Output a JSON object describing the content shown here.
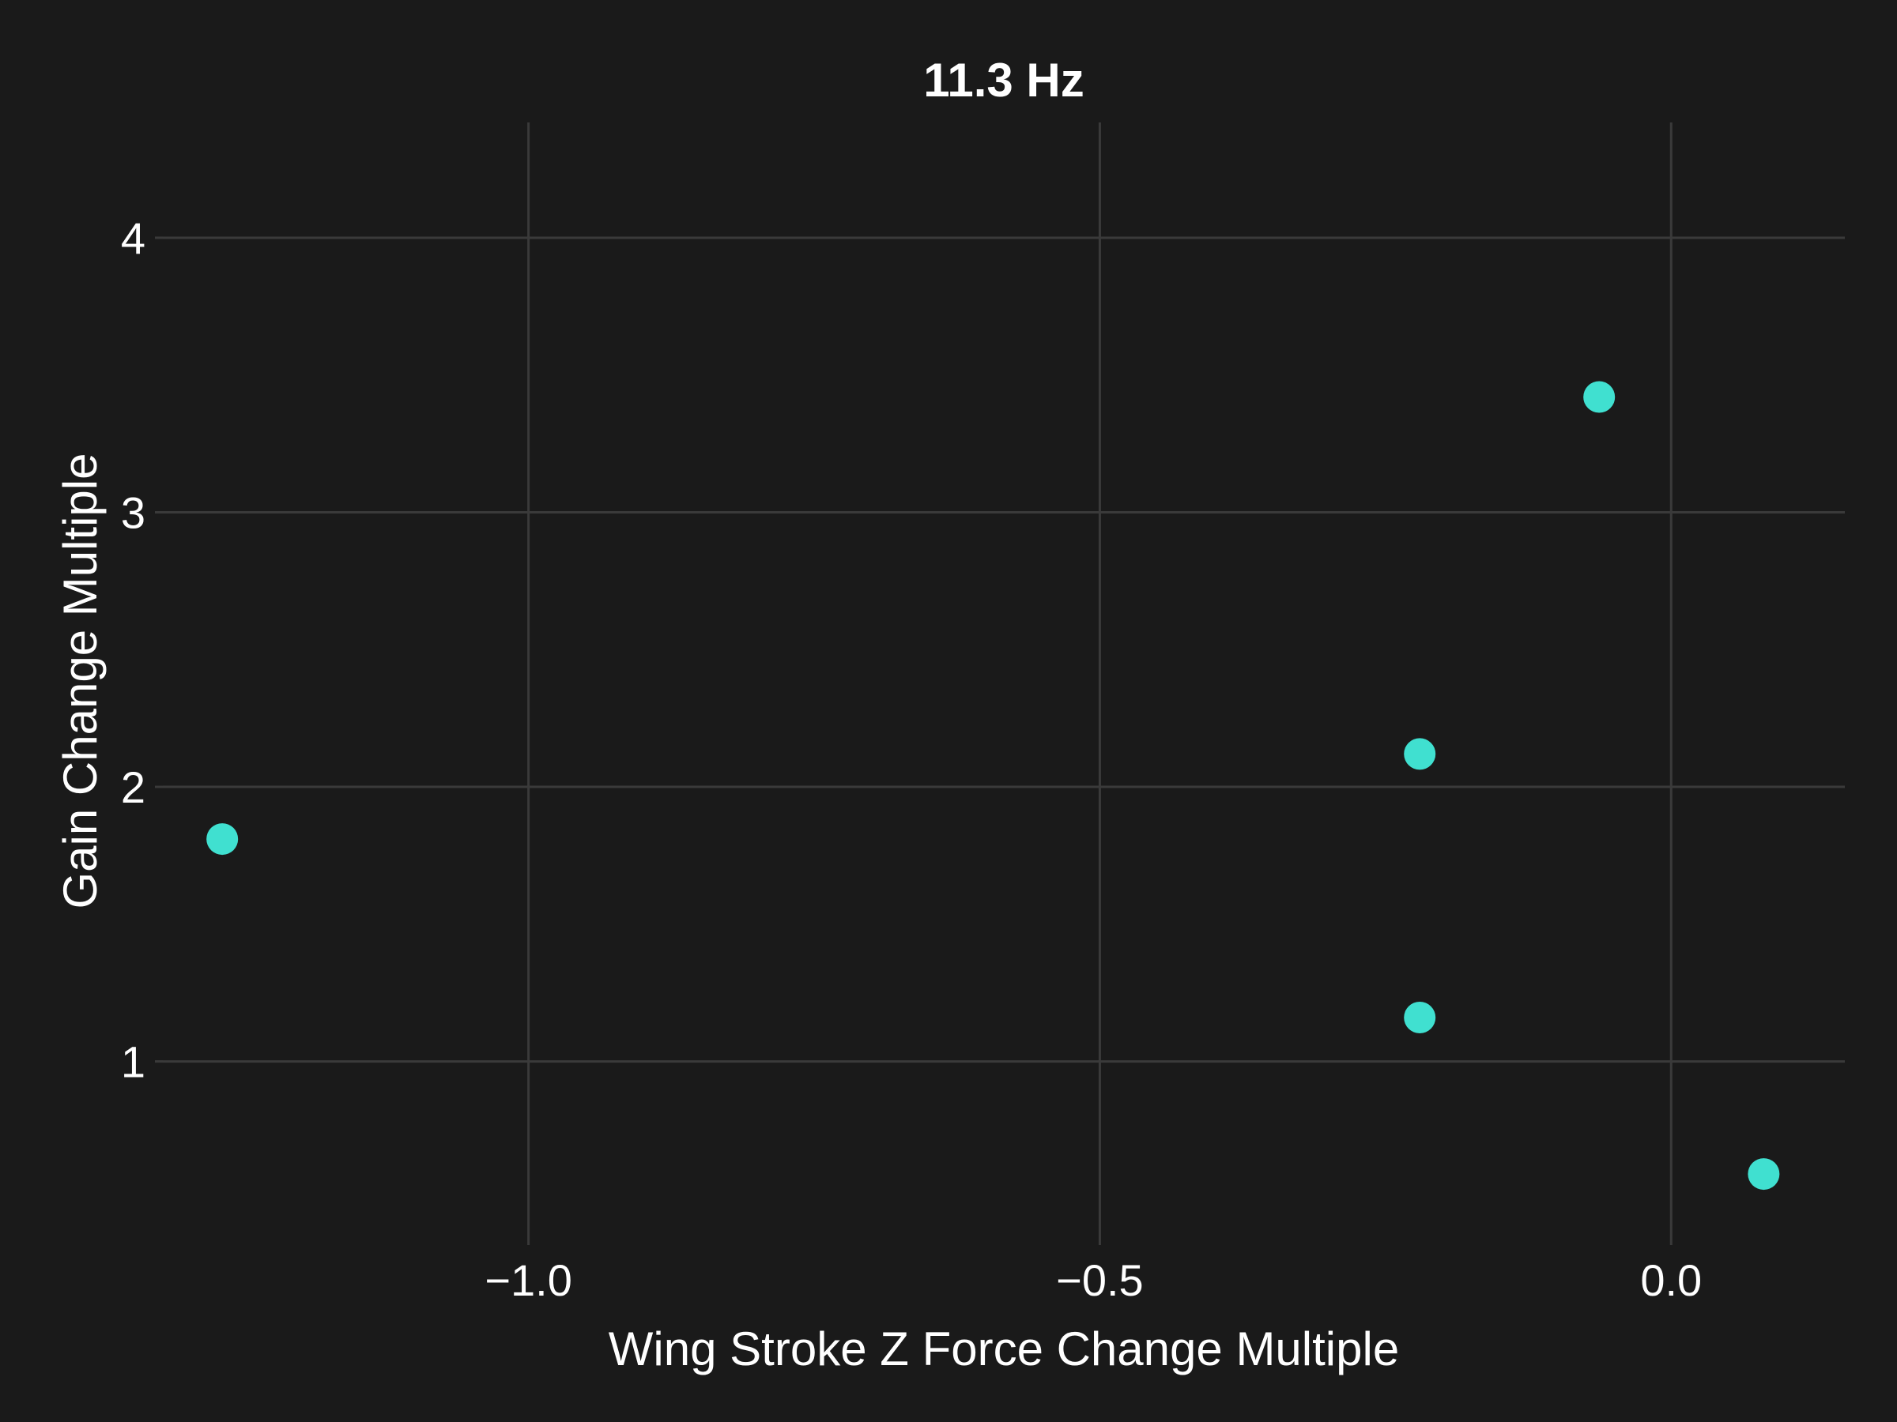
{
  "chart_data": {
    "type": "scatter",
    "title": "11.3 Hz",
    "xlabel": "Wing Stroke Z Force Change Multiple",
    "ylabel": "Gain Change Multiple",
    "xlim": [
      -1.32,
      0.152
    ],
    "ylim": [
      0.36,
      4.42
    ],
    "xticks": [
      {
        "value": -1.0,
        "label": "−1.0"
      },
      {
        "value": -0.5,
        "label": "−0.5"
      },
      {
        "value": 0.0,
        "label": "0.0"
      }
    ],
    "yticks": [
      {
        "value": 1,
        "label": "1"
      },
      {
        "value": 2,
        "label": "2"
      },
      {
        "value": 3,
        "label": "3"
      },
      {
        "value": 4,
        "label": "4"
      }
    ],
    "grid": true,
    "legend": "none",
    "series": [
      {
        "color": "#40e0d0",
        "points": [
          {
            "x": -1.268,
            "y": 1.81
          },
          {
            "x": -0.22,
            "y": 2.12
          },
          {
            "x": -0.063,
            "y": 3.42
          },
          {
            "x": -0.22,
            "y": 1.16
          },
          {
            "x": 0.081,
            "y": 0.59
          }
        ]
      }
    ]
  }
}
